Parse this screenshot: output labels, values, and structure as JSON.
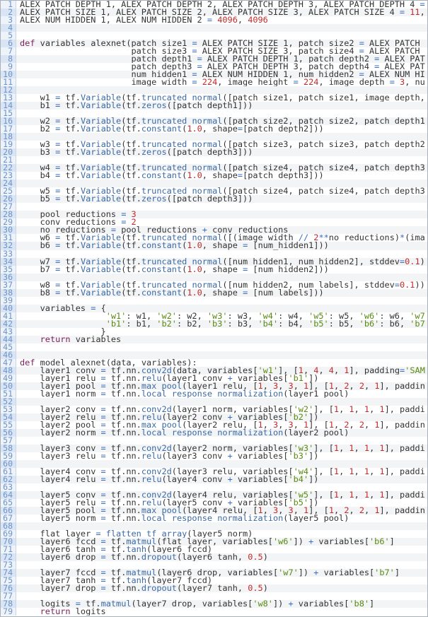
{
  "colors": {
    "keyword": "#7b1e5a",
    "number": "#c42a2a",
    "string": "#5a8a12",
    "operator": "#3a6cc4",
    "function": "#3b6aa6",
    "line_number": "#6b93c9"
  },
  "lines": [
    "ALEX_PATCH_DEPTH_1, ALEX_PATCH_DEPTH_2, ALEX_PATCH_DEPTH_3, ALEX_PATCH_DEPTH_4 =",
    "ALEX_PATCH_SIZE_1, ALEX_PATCH_SIZE_2, ALEX_PATCH_SIZE_3, ALEX_PATCH_SIZE_4 = 11,",
    "ALEX_NUM_HIDDEN_1, ALEX_NUM_HIDDEN_2 = 4096, 4096",
    "",
    "",
    "def variables_alexnet(patch_size1 = ALEX_PATCH_SIZE_1, patch_size2 = ALEX_PATCH_",
    "                      patch_size3 = ALEX_PATCH_SIZE_3, patch_size4 = ALEX_PATCH_",
    "                      patch_depth1 = ALEX_PATCH_DEPTH_1, patch_depth2 = ALEX_PAT",
    "                      patch_depth3 = ALEX_PATCH_DEPTH_3, patch_depth4 = ALEX_PAT",
    "                      num_hidden1 = ALEX_NUM_HIDDEN_1, num_hidden2 = ALEX_NUM_HI",
    "                      image_width = 224, image_height = 224, image_depth = 3, nu",
    "",
    "    w1 = tf.Variable(tf.truncated_normal([patch_size1, patch_size1, image_depth,",
    "    b1 = tf.Variable(tf.zeros([patch_depth1]))",
    "",
    "    w2 = tf.Variable(tf.truncated_normal([patch_size2, patch_size2, patch_depth1",
    "    b2 = tf.Variable(tf.constant(1.0, shape=[patch_depth2]))",
    "",
    "    w3 = tf.Variable(tf.truncated_normal([patch_size3, patch_size3, patch_depth2",
    "    b3 = tf.Variable(tf.zeros([patch_depth3]))",
    "",
    "    w4 = tf.Variable(tf.truncated_normal([patch_size4, patch_size4, patch_depth3",
    "    b4 = tf.Variable(tf.constant(1.0, shape=[patch_depth3]))",
    "",
    "    w5 = tf.Variable(tf.truncated_normal([patch_size4, patch_size4, patch_depth3",
    "    b5 = tf.Variable(tf.zeros([patch_depth3]))",
    "",
    "    pool_reductions = 3",
    "    conv_reductions = 2",
    "    no_reductions = pool_reductions + conv_reductions",
    "    w6 = tf.Variable(tf.truncated_normal([(image_width // 2**no_reductions)*(ima",
    "    b6 = tf.Variable(tf.constant(1.0, shape = [num_hidden1]))",
    "",
    "    w7 = tf.Variable(tf.truncated_normal([num_hidden1, num_hidden2], stddev=0.1)",
    "    b7 = tf.Variable(tf.constant(1.0, shape = [num_hidden2]))",
    "",
    "    w8 = tf.Variable(tf.truncated_normal([num_hidden2, num_labels], stddev=0.1))",
    "    b8 = tf.Variable(tf.constant(1.0, shape = [num_labels]))",
    "",
    "    variables = {",
    "                 'w1': w1, 'w2': w2, 'w3': w3, 'w4': w4, 'w5': w5, 'w6': w6, 'w7",
    "                 'b1': b1, 'b2': b2, 'b3': b3, 'b4': b4, 'b5': b5, 'b6': b6, 'b7",
    "                }",
    "    return variables",
    "",
    "",
    "def model_alexnet(data, variables):",
    "    layer1_conv = tf.nn.conv2d(data, variables['w1'], [1, 4, 4, 1], padding='SAM",
    "    layer1_relu = tf.nn.relu(layer1_conv + variables['b1'])",
    "    layer1_pool = tf.nn.max_pool(layer1_relu, [1, 3, 3, 1], [1, 2, 2, 1], paddin",
    "    layer1_norm = tf.nn.local_response_normalization(layer1_pool)",
    "",
    "    layer2_conv = tf.nn.conv2d(layer1_norm, variables['w2'], [1, 1, 1, 1], paddi",
    "    layer2_relu = tf.nn.relu(layer2_conv + variables['b2'])",
    "    layer2_pool = tf.nn.max_pool(layer2_relu, [1, 3, 3, 1], [1, 2, 2, 1], paddin",
    "    layer2_norm = tf.nn.local_response_normalization(layer2_pool)",
    "",
    "    layer3_conv = tf.nn.conv2d(layer2_norm, variables['w3'], [1, 1, 1, 1], paddi",
    "    layer3_relu = tf.nn.relu(layer3_conv + variables['b3'])",
    "",
    "    layer4_conv = tf.nn.conv2d(layer3_relu, variables['w4'], [1, 1, 1, 1], paddi",
    "    layer4_relu = tf.nn.relu(layer4_conv + variables['b4'])",
    "",
    "    layer5_conv = tf.nn.conv2d(layer4_relu, variables['w5'], [1, 1, 1, 1], paddi",
    "    layer5_relu = tf.nn.relu(layer5_conv + variables['b5'])",
    "    layer5_pool = tf.nn.max_pool(layer4_relu, [1, 3, 3, 1], [1, 2, 2, 1], paddin",
    "    layer5_norm = tf.nn.local_response_normalization(layer5_pool)",
    "",
    "    flat_layer = flatten_tf_array(layer5_norm)",
    "    layer6_fccd = tf.matmul(flat_layer, variables['w6']) + variables['b6']",
    "    layer6_tanh = tf.tanh(layer6_fccd)",
    "    layer6_drop = tf.nn.dropout(layer6_tanh, 0.5)",
    "",
    "    layer7_fccd = tf.matmul(layer6_drop, variables['w7']) + variables['b7']",
    "    layer7_tanh = tf.tanh(layer7_fccd)",
    "    layer7_drop = tf.nn.dropout(layer7_tanh, 0.5)",
    "",
    "    logits = tf.matmul(layer7_drop, variables['w8']) + variables['b8']",
    "    return logits"
  ]
}
